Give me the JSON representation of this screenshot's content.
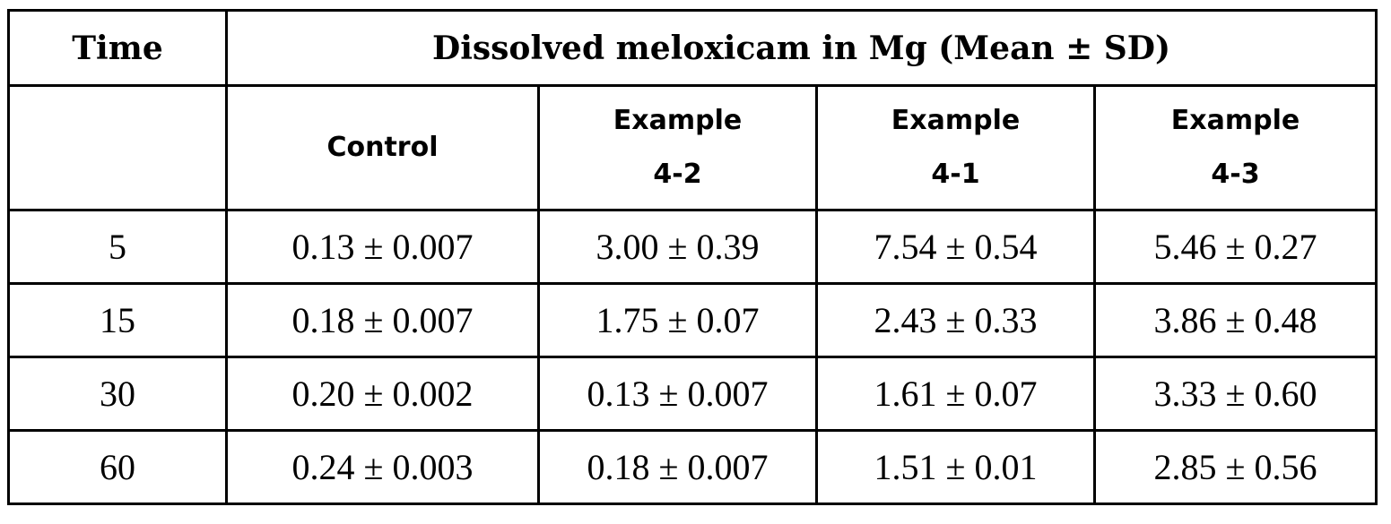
{
  "table": {
    "header": {
      "time": "Time",
      "group": "Dissolved meloxicam in Mg (Mean ± SD)"
    },
    "columns": [
      {
        "line1": "Control",
        "line2": ""
      },
      {
        "line1": "Example",
        "line2": "4-2"
      },
      {
        "line1": "Example",
        "line2": "4-1"
      },
      {
        "line1": "Example",
        "line2": "4-3"
      }
    ],
    "rows": [
      {
        "time": "5",
        "cells": [
          "0.13 ± 0.007",
          "3.00 ± 0.39",
          "7.54 ± 0.54",
          "5.46 ± 0.27"
        ]
      },
      {
        "time": "15",
        "cells": [
          "0.18 ± 0.007",
          "1.75 ± 0.07",
          "2.43 ± 0.33",
          "3.86 ± 0.48"
        ]
      },
      {
        "time": "30",
        "cells": [
          "0.20 ± 0.002",
          "0.13 ± 0.007",
          "1.61 ± 0.07",
          "3.33 ± 0.60"
        ]
      },
      {
        "time": "60",
        "cells": [
          "0.24 ± 0.003",
          "0.18 ± 0.007",
          "1.51 ± 0.01",
          "2.85 ± 0.56"
        ]
      }
    ]
  }
}
